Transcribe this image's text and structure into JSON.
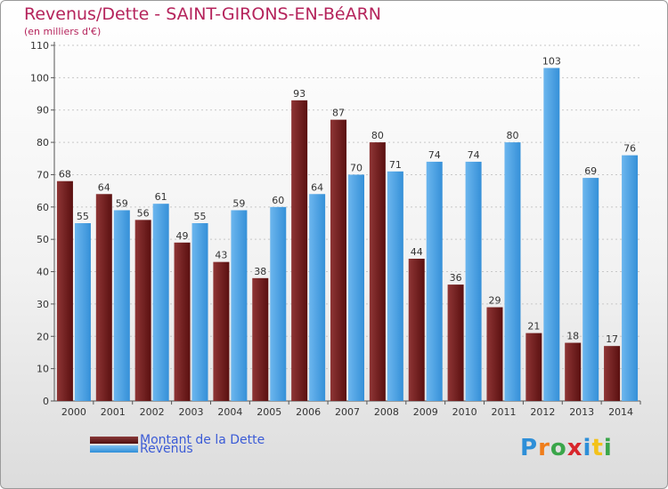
{
  "chart_data": {
    "type": "bar",
    "title": "Revenus/Dette - SAINT-GIRONS-EN-BéARN",
    "subtitle": "(en milliers d'€)",
    "categories": [
      "2000",
      "2001",
      "2002",
      "2003",
      "2004",
      "2005",
      "2006",
      "2007",
      "2008",
      "2009",
      "2010",
      "2011",
      "2012",
      "2013",
      "2014"
    ],
    "series": [
      {
        "name": "Montant de la Dette",
        "values": [
          68,
          64,
          56,
          49,
          43,
          38,
          93,
          87,
          80,
          44,
          36,
          29,
          21,
          18,
          17
        ],
        "color": "#6b1a1a"
      },
      {
        "name": "Revenus",
        "values": [
          55,
          59,
          61,
          55,
          59,
          60,
          64,
          70,
          71,
          74,
          74,
          80,
          103,
          69,
          76
        ],
        "color": "#4aa3e8"
      }
    ],
    "ylim": [
      0,
      110
    ],
    "yticks": [
      0,
      10,
      20,
      30,
      40,
      50,
      60,
      70,
      80,
      90,
      100,
      110
    ],
    "grid": true,
    "legend_position": "bottom-left"
  },
  "logo": {
    "text": "Proxiti"
  }
}
